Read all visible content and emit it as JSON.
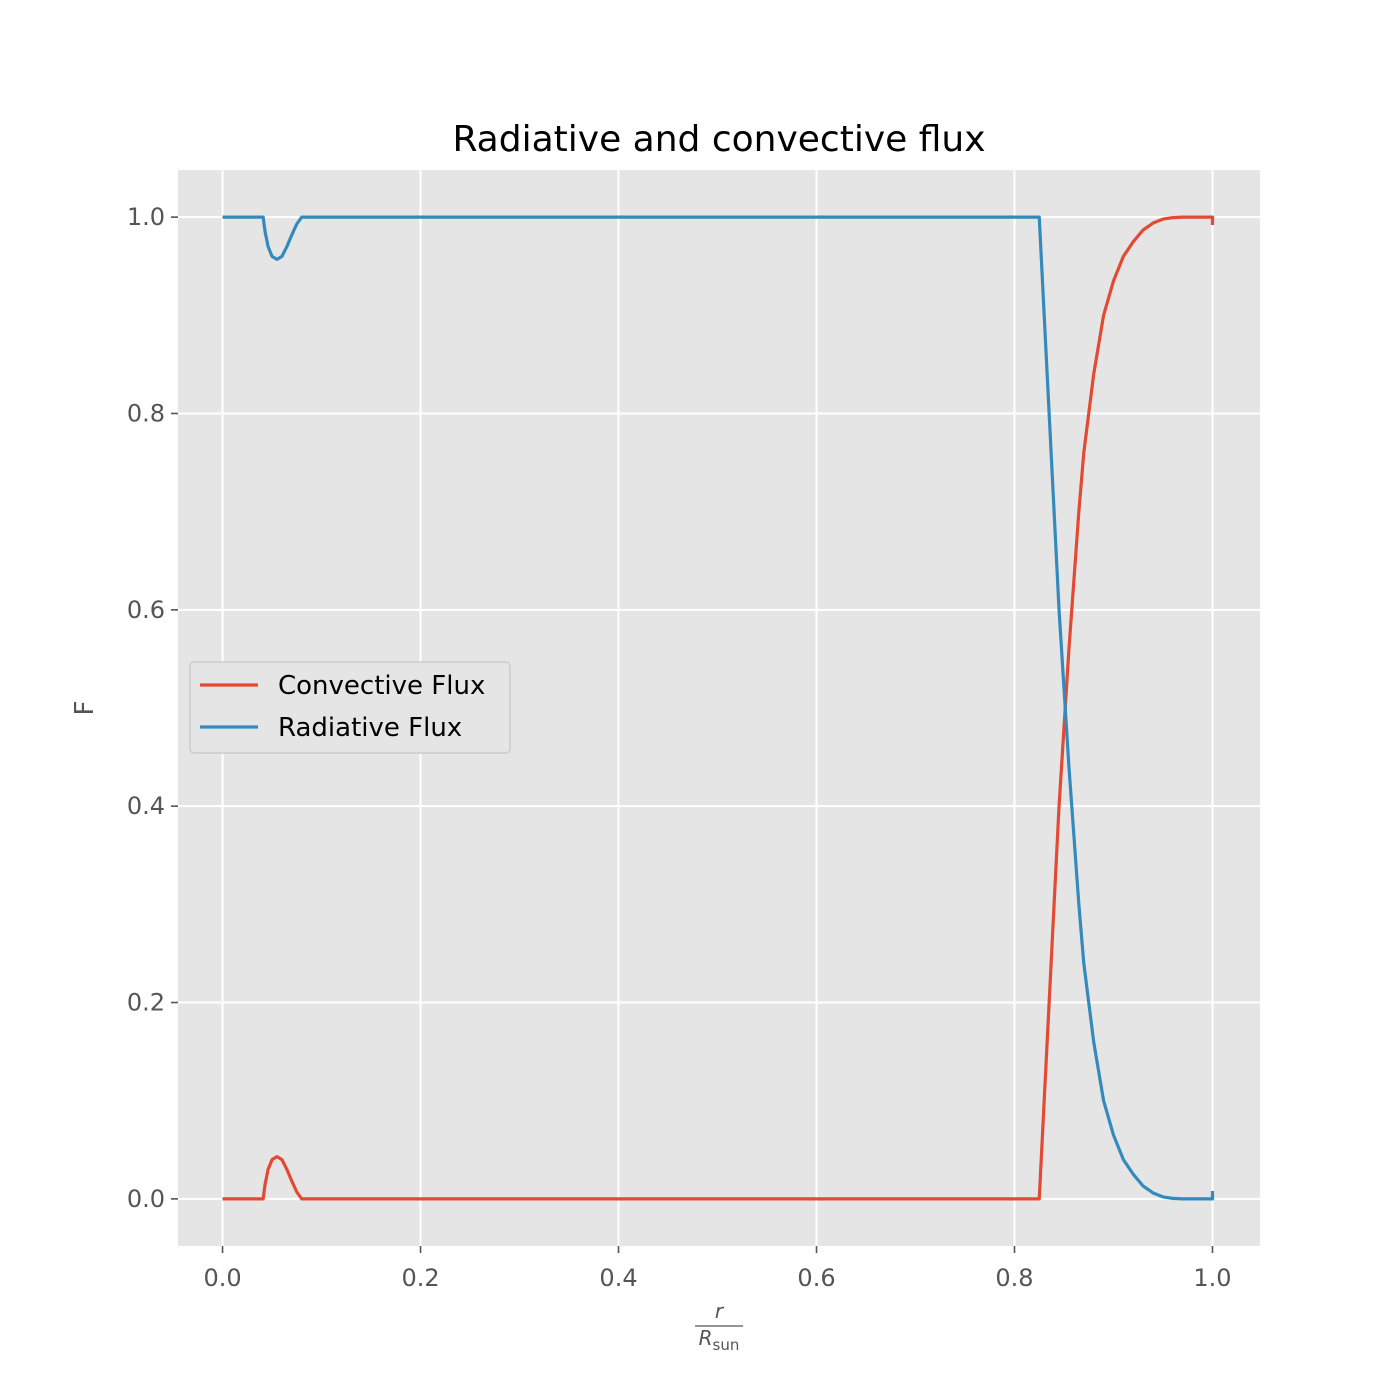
{
  "chart_data": {
    "type": "line",
    "title": "Radiative and convective flux",
    "xlabel_num": "r",
    "xlabel_den_main": "R",
    "xlabel_den_sub": "sun",
    "ylabel": "F",
    "xlim": [
      -0.045,
      1.048
    ],
    "ylim": [
      -0.048,
      1.048
    ],
    "xticks": [
      0.0,
      0.2,
      0.4,
      0.6,
      0.8,
      1.0
    ],
    "xtick_labels": [
      "0.0",
      "0.2",
      "0.4",
      "0.6",
      "0.8",
      "1.0"
    ],
    "yticks": [
      0.0,
      0.2,
      0.4,
      0.6,
      0.8,
      1.0
    ],
    "ytick_labels": [
      "0.0",
      "0.2",
      "0.4",
      "0.6",
      "0.8",
      "1.0"
    ],
    "grid": true,
    "legend_position": "center-left",
    "series": [
      {
        "name": "Convective Flux",
        "color": "#E24A33",
        "x": [
          0.0,
          0.041,
          0.043,
          0.046,
          0.05,
          0.055,
          0.06,
          0.065,
          0.07,
          0.075,
          0.08,
          0.2,
          0.4,
          0.6,
          0.8,
          0.825,
          0.83,
          0.835,
          0.84,
          0.845,
          0.85,
          0.855,
          0.86,
          0.865,
          0.87,
          0.875,
          0.88,
          0.885,
          0.89,
          0.9,
          0.91,
          0.92,
          0.93,
          0.94,
          0.95,
          0.96,
          0.97,
          0.98,
          0.99,
          0.998,
          1.0,
          1.0
        ],
        "y": [
          0.0,
          0.0,
          0.015,
          0.03,
          0.04,
          0.043,
          0.04,
          0.03,
          0.018,
          0.007,
          0.0,
          0.0,
          0.0,
          0.0,
          0.0,
          0.0,
          0.1,
          0.2,
          0.3,
          0.4,
          0.48,
          0.56,
          0.63,
          0.7,
          0.76,
          0.8,
          0.84,
          0.87,
          0.9,
          0.935,
          0.96,
          0.975,
          0.987,
          0.994,
          0.998,
          0.9995,
          1.0,
          1.0,
          1.0,
          1.0,
          1.0,
          0.992
        ]
      },
      {
        "name": "Radiative Flux",
        "color": "#348ABD",
        "x": [
          0.0,
          0.041,
          0.043,
          0.046,
          0.05,
          0.055,
          0.06,
          0.065,
          0.07,
          0.075,
          0.08,
          0.2,
          0.4,
          0.6,
          0.8,
          0.825,
          0.83,
          0.835,
          0.84,
          0.845,
          0.85,
          0.855,
          0.86,
          0.865,
          0.87,
          0.875,
          0.88,
          0.885,
          0.89,
          0.9,
          0.91,
          0.92,
          0.93,
          0.94,
          0.95,
          0.96,
          0.97,
          0.98,
          0.99,
          0.998,
          1.0,
          1.0
        ],
        "y": [
          1.0,
          1.0,
          0.985,
          0.97,
          0.96,
          0.957,
          0.96,
          0.97,
          0.982,
          0.993,
          1.0,
          1.0,
          1.0,
          1.0,
          1.0,
          1.0,
          0.9,
          0.8,
          0.7,
          0.6,
          0.52,
          0.44,
          0.37,
          0.3,
          0.24,
          0.2,
          0.16,
          0.13,
          0.1,
          0.065,
          0.04,
          0.025,
          0.013,
          0.006,
          0.002,
          0.0005,
          0.0,
          0.0,
          0.0,
          0.0,
          0.0,
          0.008
        ]
      }
    ]
  }
}
